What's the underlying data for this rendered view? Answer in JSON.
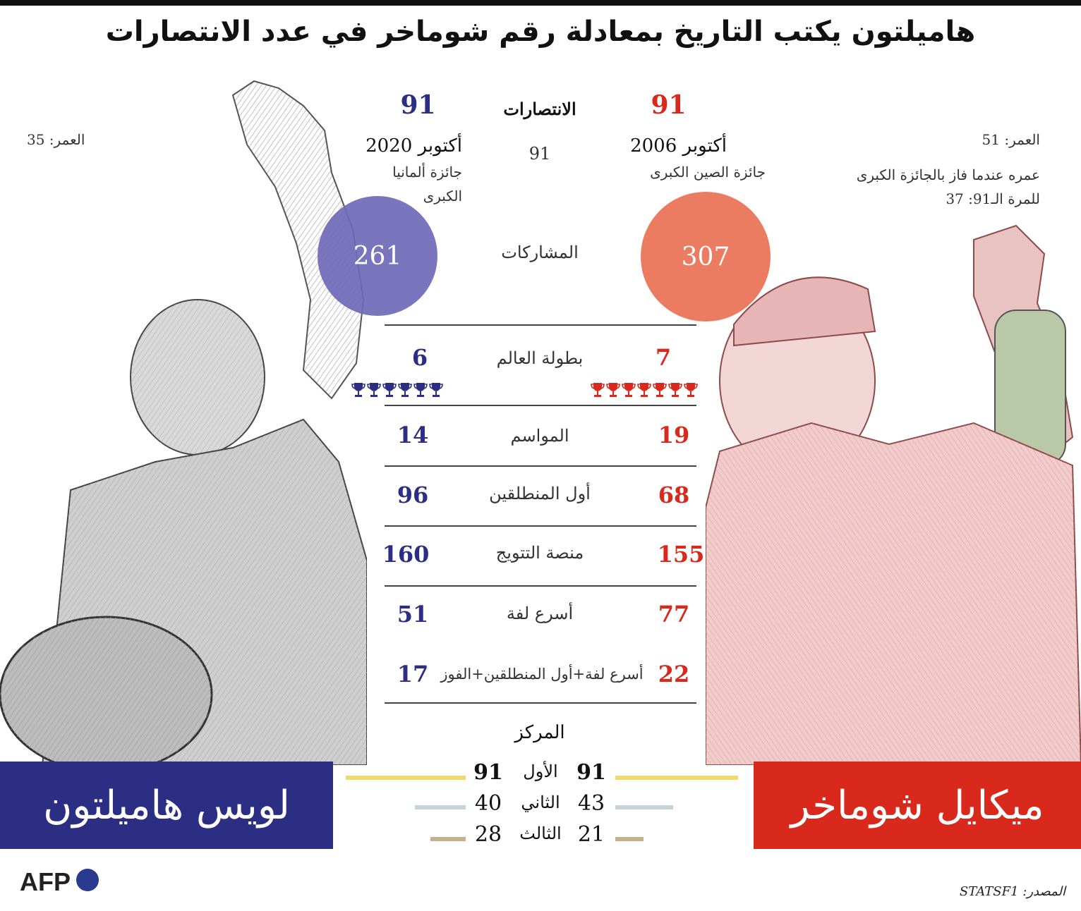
{
  "title": "هاميلتون يكتب التاريخ بمعادلة رقم شوماخر في عدد الانتصارات",
  "colors": {
    "hamilton": "#2b2e82",
    "schumacher": "#d8291c",
    "hamilton_circle": "#6f6ab8",
    "schumacher_circle": "#ec7659",
    "first": "#f2d96b",
    "second": "#c8d3d6",
    "third": "#c6b08e"
  },
  "hamilton": {
    "name": "لويس هاميلتون",
    "age": "العمر: 35",
    "wins": "91",
    "record_date": "أكتوبر 2020",
    "record_race_line1": "جائزة ألمانيا",
    "record_race_line2": "الكبرى",
    "entries": "261",
    "titles": "6",
    "seasons": "14",
    "poles": "96",
    "podiums": "160",
    "fastest_laps": "51",
    "hat_tricks": "17",
    "pos1": "91",
    "pos2": "40",
    "pos3": "28"
  },
  "schumacher": {
    "name": "ميكايل شوماخر",
    "age": "العمر: 51",
    "age_note_line1": "عمره عندما فاز بالجائزة الكبرى",
    "age_note_line2": "للمرة الـ91: 37",
    "wins": "91",
    "record_date": "أكتوبر 2006",
    "record_race": "جائزة الصين الكبرى",
    "entries": "307",
    "titles": "7",
    "seasons": "19",
    "poles": "68",
    "podiums": "155",
    "fastest_laps": "77",
    "hat_tricks": "22",
    "pos1": "91",
    "pos2": "43",
    "pos3": "21"
  },
  "labels": {
    "wins": "الانتصارات",
    "wins_sub": "91",
    "entries": "المشاركات",
    "titles": "بطولة العالم",
    "seasons": "المواسم",
    "poles": "أول المنطلقين",
    "podiums": "منصة التتويج",
    "fastest_laps": "أسرع لفة",
    "hat_tricks": "أسرع لفة+أول المنطلقين+الفوز",
    "position": "المركز",
    "first": "الأول",
    "second": "الثاني",
    "third": "الثالث"
  },
  "footer": {
    "logo": "AFP",
    "source": "المصدر: STATSF1"
  },
  "chart_data": {
    "type": "table",
    "title": "هاميلتون يكتب التاريخ بمعادلة رقم شوماخر في عدد الانتصارات",
    "columns": [
      "ميكايل شوماخر",
      "لويس هاميلتون"
    ],
    "rows": [
      {
        "label": "الانتصارات",
        "schumacher": 91,
        "hamilton": 91
      },
      {
        "label": "المشاركات",
        "schumacher": 307,
        "hamilton": 261
      },
      {
        "label": "بطولة العالم",
        "schumacher": 7,
        "hamilton": 6
      },
      {
        "label": "المواسم",
        "schumacher": 19,
        "hamilton": 14
      },
      {
        "label": "أول المنطلقين",
        "schumacher": 68,
        "hamilton": 96
      },
      {
        "label": "منصة التتويج",
        "schumacher": 155,
        "hamilton": 160
      },
      {
        "label": "أسرع لفة",
        "schumacher": 77,
        "hamilton": 51
      },
      {
        "label": "أسرع لفة+أول المنطلقين+الفوز",
        "schumacher": 22,
        "hamilton": 17
      }
    ],
    "positions": [
      {
        "label": "الأول",
        "schumacher": 91,
        "hamilton": 91
      },
      {
        "label": "الثاني",
        "schumacher": 43,
        "hamilton": 40
      },
      {
        "label": "الثالث",
        "schumacher": 21,
        "hamilton": 28
      }
    ]
  }
}
